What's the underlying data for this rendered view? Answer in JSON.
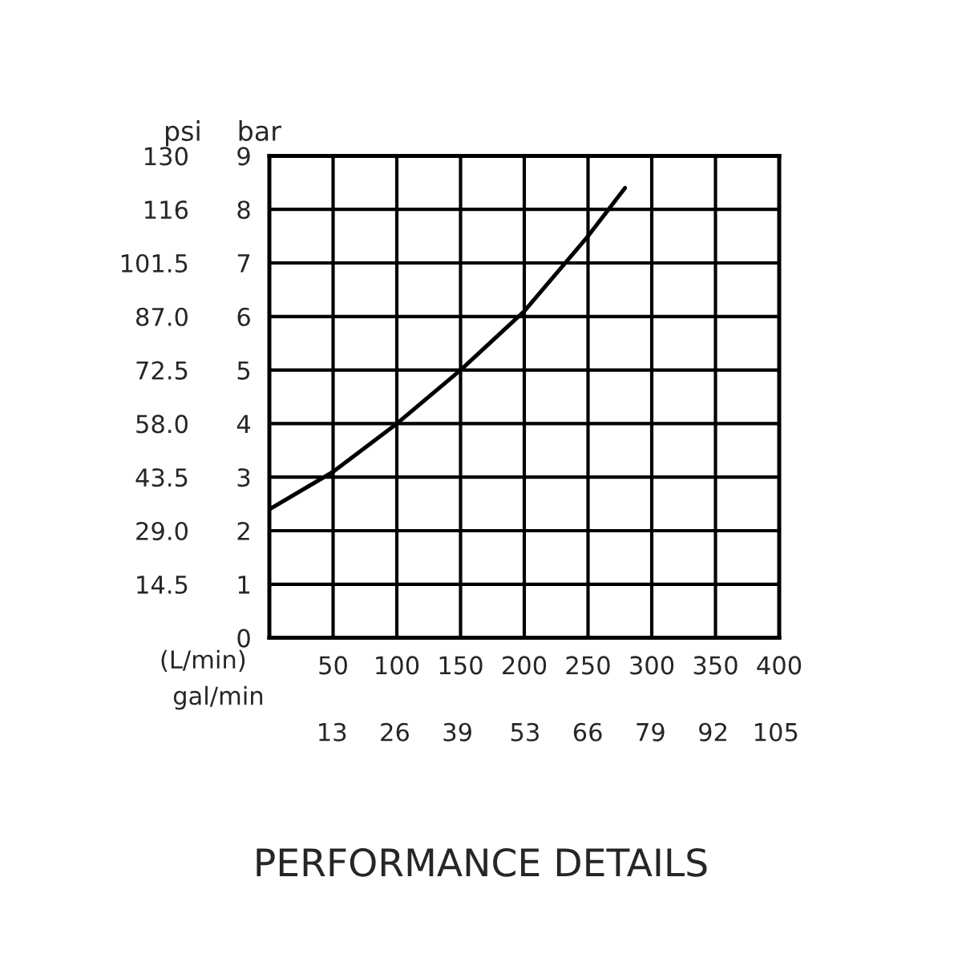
{
  "chart_data": {
    "type": "line",
    "title": "PERFORMANCE DETAILS",
    "xlabel": "(L/min)",
    "ylabel": "bar",
    "y2label": "psi",
    "x2label": "gal/min",
    "series": [
      {
        "color": "#000000",
        "x": [
          0,
          50,
          100,
          150,
          200,
          250,
          279
        ],
        "values": [
          2.4,
          3.1,
          4.0,
          5.0,
          6.1,
          7.5,
          8.4
        ]
      }
    ],
    "xlim": [
      0,
      400
    ],
    "xticks": [
      50,
      100,
      150,
      200,
      250,
      300,
      350,
      400
    ],
    "ylim": [
      0,
      9
    ],
    "yticks": [
      0,
      1,
      2,
      3,
      4,
      5,
      6,
      7,
      8,
      9
    ],
    "x2lim": [
      0,
      105.7
    ],
    "x2ticks": [
      13,
      26,
      39,
      53,
      66,
      79,
      92,
      105
    ],
    "y2lim": [
      0,
      130.5
    ],
    "y2ticks": [
      {
        "value": 14.5,
        "label": "14.5"
      },
      {
        "value": 29.0,
        "label": "29.0"
      },
      {
        "value": 43.5,
        "label": "43.5"
      },
      {
        "value": 58.0,
        "label": "58.0"
      },
      {
        "value": 72.5,
        "label": "72.5"
      },
      {
        "value": 87.0,
        "label": "87.0"
      },
      {
        "value": 101.5,
        "label": "101.5"
      },
      {
        "value": 116,
        "label": "116"
      },
      {
        "value": 130.5,
        "label": "130"
      }
    ],
    "grid": true,
    "marker": "none",
    "line_style": "solid",
    "legend": false
  }
}
